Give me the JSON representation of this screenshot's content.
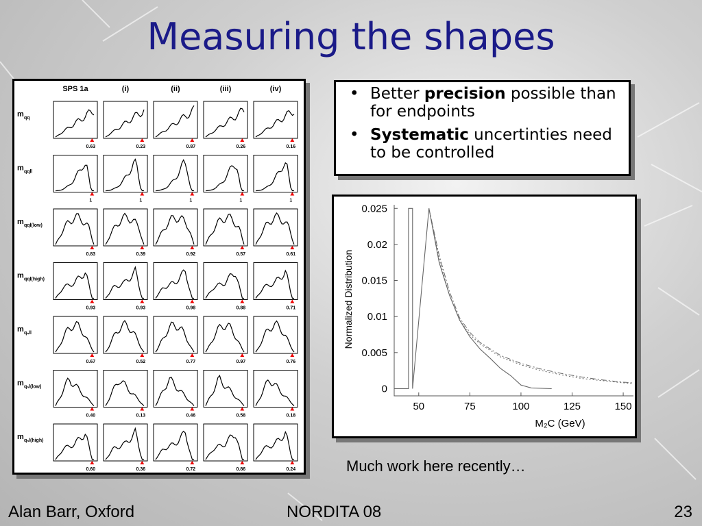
{
  "slide": {
    "title": "Measuring the shapes",
    "bullets": [
      {
        "pre": "Better ",
        "bold": "precision",
        "post": " possible than for endpoints"
      },
      {
        "pre": "",
        "bold": "Systematic",
        "post": " uncertinties need to be controlled"
      }
    ],
    "caption": "Much work here recently…",
    "footer_left": "Alan Barr, Oxford",
    "footer_center": "NORDITA 08",
    "footer_right": "23"
  },
  "chart_data": [
    {
      "type": "table",
      "columns": [
        "SPS 1a",
        "(i)",
        "(ii)",
        "(iii)",
        "(iv)"
      ],
      "rows": [
        {
          "label": "m",
          "sub": "qq",
          "values": [
            "0.63",
            "0.23",
            "0.87",
            "0.26",
            "0.16"
          ],
          "shape": "ramp"
        },
        {
          "label": "m",
          "sub": "qqll",
          "values": [
            "1",
            "1",
            "1",
            "1",
            "1"
          ],
          "shape": "sharp"
        },
        {
          "label": "m",
          "sub": "qql(low)",
          "values": [
            "0.83",
            "0.39",
            "0.92",
            "0.57",
            "0.61"
          ],
          "shape": "hump"
        },
        {
          "label": "m",
          "sub": "qql(high)",
          "values": [
            "0.93",
            "0.93",
            "0.98",
            "0.88",
            "0.71"
          ],
          "shape": "double"
        },
        {
          "label": "m",
          "sub": "qₙll",
          "values": [
            "0.67",
            "0.52",
            "0.77",
            "0.97",
            "0.76"
          ],
          "shape": "bell"
        },
        {
          "label": "m",
          "sub": "qₙl(low)",
          "values": [
            "0.40",
            "0.13",
            "0.46",
            "0.58",
            "0.18"
          ],
          "shape": "tri"
        },
        {
          "label": "m",
          "sub": "qₙl(high)",
          "values": [
            "0.60",
            "0.36",
            "0.72",
            "0.86",
            "0.24"
          ],
          "shape": "double"
        }
      ]
    },
    {
      "type": "line",
      "xlabel": "M₂C (GeV)",
      "ylabel": "Normalized Distribution",
      "xlim": [
        38,
        155
      ],
      "ylim": [
        -0.001,
        0.0255
      ],
      "xticks": [
        50,
        75,
        100,
        125,
        150
      ],
      "yticks": [
        0,
        0.005,
        0.01,
        0.015,
        0.02,
        0.025
      ],
      "ytick_labels": [
        "0",
        "0.005",
        "0.01",
        "0.015",
        "0.02",
        "0.025"
      ],
      "series": [
        {
          "style": "solid",
          "x": [
            38,
            45,
            45,
            47,
            47,
            55,
            60,
            65,
            70,
            75,
            80,
            85,
            90,
            95,
            100,
            105,
            115
          ],
          "y": [
            0,
            0,
            0.025,
            0.025,
            0,
            0.025,
            0.0175,
            0.013,
            0.0095,
            0.0072,
            0.0055,
            0.0042,
            0.0028,
            0.0018,
            0.0005,
            0.0001,
            0
          ]
        },
        {
          "style": "dashdot",
          "x": [
            55,
            60,
            65,
            70,
            75,
            80,
            90,
            100,
            110,
            120,
            130,
            140,
            150,
            155
          ],
          "y": [
            0.025,
            0.0185,
            0.0135,
            0.0098,
            0.0078,
            0.0064,
            0.0046,
            0.0035,
            0.0027,
            0.0021,
            0.0016,
            0.0012,
            0.0009,
            0.0008
          ]
        },
        {
          "style": "dotted",
          "x": [
            55,
            60,
            65,
            70,
            75,
            80,
            90,
            100,
            110,
            120,
            130,
            140,
            150,
            155
          ],
          "y": [
            0.025,
            0.018,
            0.013,
            0.0095,
            0.0075,
            0.0062,
            0.0044,
            0.0033,
            0.0025,
            0.0019,
            0.0014,
            0.0011,
            0.0008,
            0.0007
          ]
        }
      ]
    }
  ]
}
